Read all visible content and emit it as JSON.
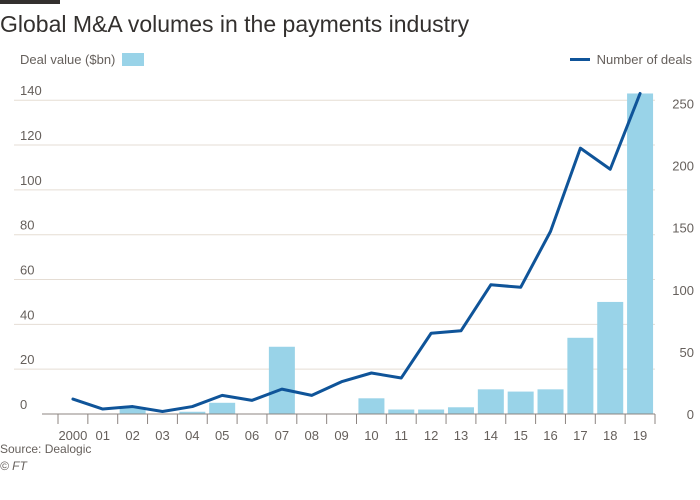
{
  "chart_data": {
    "type": "bar+line",
    "title": "Global M&A volumes in the payments industry",
    "categories": [
      "2000",
      "01",
      "02",
      "03",
      "04",
      "05",
      "06",
      "07",
      "08",
      "09",
      "10",
      "11",
      "12",
      "13",
      "14",
      "15",
      "16",
      "17",
      "18",
      "19"
    ],
    "series": [
      {
        "name": "Deal value ($bn)",
        "type": "bar",
        "axis": "left",
        "color": "#99d3e8",
        "values": [
          0,
          0,
          3,
          0,
          1,
          5,
          0,
          30,
          0,
          0,
          7,
          2,
          2,
          3,
          11,
          10,
          11,
          34,
          50,
          143
        ]
      },
      {
        "name": "Number of deals",
        "type": "line",
        "axis": "right",
        "color": "#0f5499",
        "values": [
          12,
          4,
          6,
          2,
          6,
          15,
          11,
          20,
          15,
          26,
          33,
          29,
          65,
          67,
          104,
          102,
          147,
          214,
          197,
          258
        ]
      }
    ],
    "y_left": {
      "ticks": [
        0,
        20,
        40,
        60,
        80,
        100,
        120,
        140
      ],
      "ylim": [
        0,
        145
      ]
    },
    "y_right": {
      "ticks": [
        0,
        50,
        100,
        150,
        200,
        250
      ],
      "ylim": [
        0,
        261.6
      ]
    },
    "grid": true,
    "legend": {
      "left": "Deal value ($bn)",
      "right": "Number of deals"
    },
    "source": "Source: Dealogic",
    "copyright": "© FT"
  },
  "colors": {
    "text": "#33302e",
    "muted": "#66605c",
    "grid": "#e5ddd4",
    "axis": "#8c8480"
  }
}
